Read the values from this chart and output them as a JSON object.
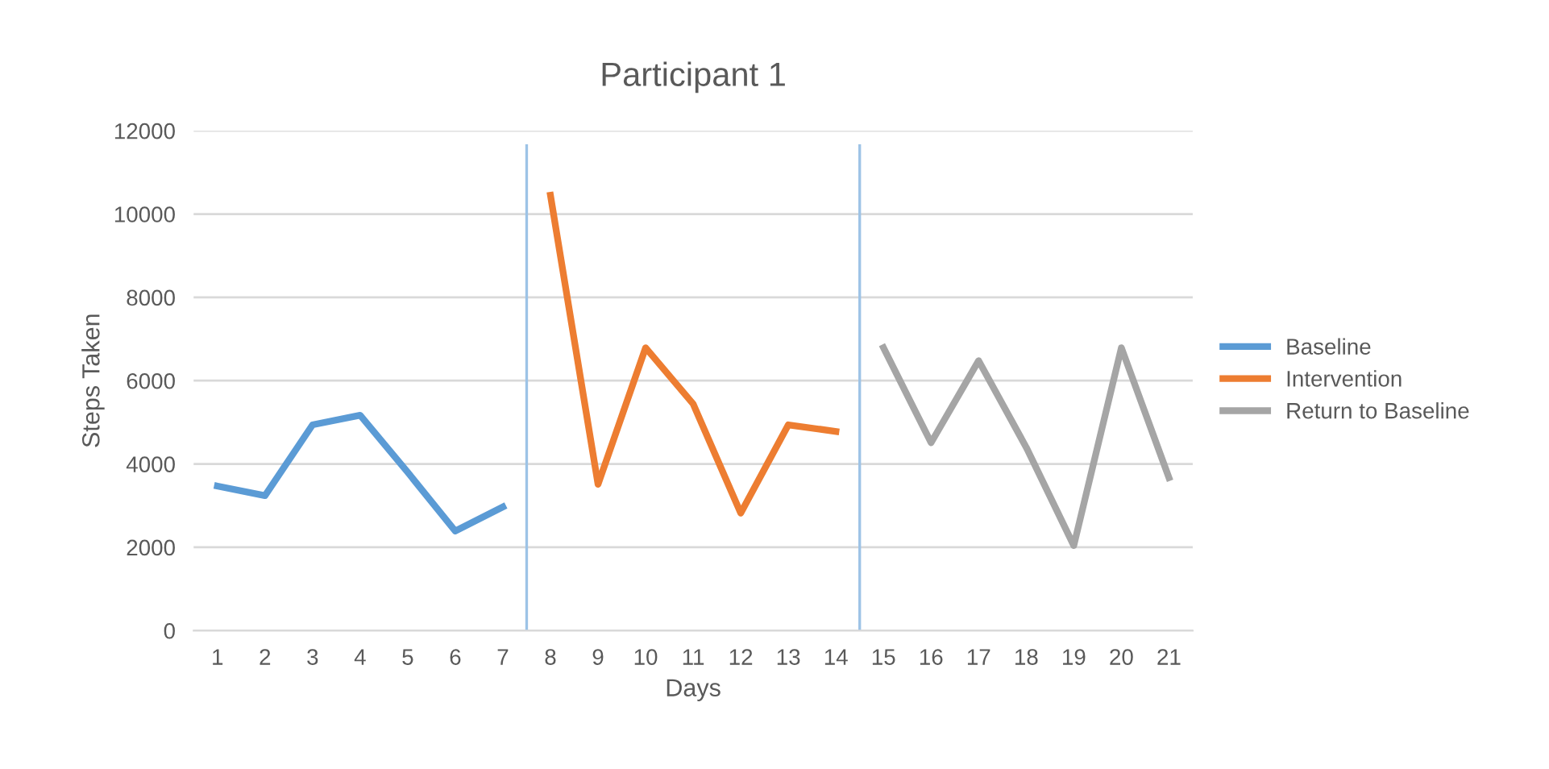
{
  "chart_data": {
    "type": "line",
    "title": "Participant 1",
    "xlabel": "Days",
    "ylabel": "Steps Taken",
    "xlim": [
      0.5,
      21.5
    ],
    "xticks": [
      1,
      2,
      3,
      4,
      5,
      6,
      7,
      8,
      9,
      10,
      11,
      12,
      13,
      14,
      15,
      16,
      17,
      18,
      19,
      20,
      21
    ],
    "ylim": [
      0,
      12000
    ],
    "yticks": [
      0,
      2000,
      4000,
      6000,
      8000,
      10000,
      12000
    ],
    "grid": "y",
    "legend": "right",
    "marker": "none",
    "line_style": "solid",
    "series": [
      {
        "name": "Baseline",
        "color": "#5b9bd5",
        "x": [
          1,
          2,
          3,
          4,
          5,
          6,
          7
        ],
        "values": [
          3470,
          3240,
          4940,
          5170,
          3800,
          2390,
          2970
        ]
      },
      {
        "name": "Intervention",
        "color": "#ed7d31",
        "x": [
          8,
          9,
          10,
          11,
          12,
          13,
          14
        ],
        "values": [
          10450,
          3510,
          6790,
          5440,
          2820,
          4940,
          4780
        ]
      },
      {
        "name": "Return to Baseline",
        "color": "#a5a5a5",
        "x": [
          15,
          16,
          17,
          18,
          19,
          20,
          21
        ],
        "values": [
          6790,
          4510,
          6480,
          4400,
          2040,
          6790,
          3670
        ]
      }
    ],
    "ref_lines": [
      {
        "axis": "x",
        "value": 7.5,
        "color": "#9dc3e6",
        "line_style": "solid"
      },
      {
        "axis": "x",
        "value": 14.5,
        "color": "#9dc3e6",
        "line_style": "solid"
      }
    ]
  }
}
